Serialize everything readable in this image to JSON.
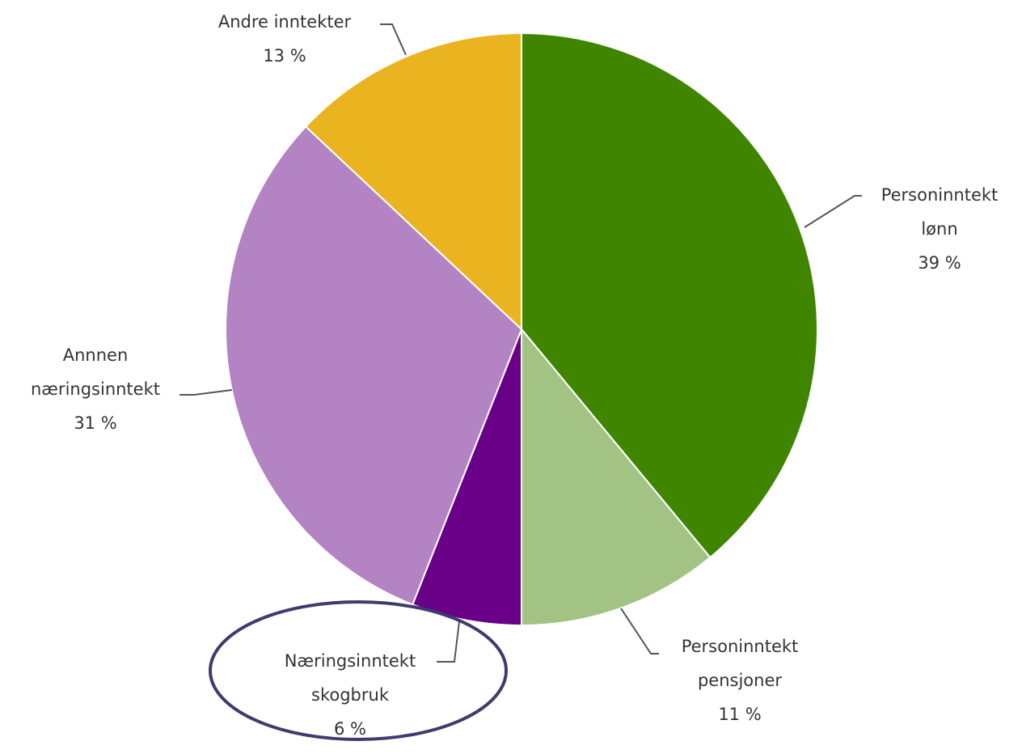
{
  "chart_data": {
    "type": "pie",
    "title": "",
    "start_angle_deg": 0,
    "direction": "clockwise",
    "slices": [
      {
        "label_lines": [
          "Personinntekt",
          "lønn"
        ],
        "value": 39,
        "value_label": "39 %",
        "color": "#408500"
      },
      {
        "label_lines": [
          "Personinntekt",
          "pensjoner"
        ],
        "value": 11,
        "value_label": "11 %",
        "color": "#A2C383"
      },
      {
        "label_lines": [
          "Næringsinntekt",
          "skogbruk"
        ],
        "value": 6,
        "value_label": "6 %",
        "color": "#690087"
      },
      {
        "label_lines": [
          "Annnen",
          "næringsinntekt"
        ],
        "value": 31,
        "value_label": "31 %",
        "color": "#B383C3"
      },
      {
        "label_lines": [
          "Andre inntekter"
        ],
        "value": 13,
        "value_label": "13 %",
        "color": "#EAB320"
      }
    ],
    "highlight": {
      "slice_index": 2,
      "color": "#3F3B6E"
    }
  }
}
